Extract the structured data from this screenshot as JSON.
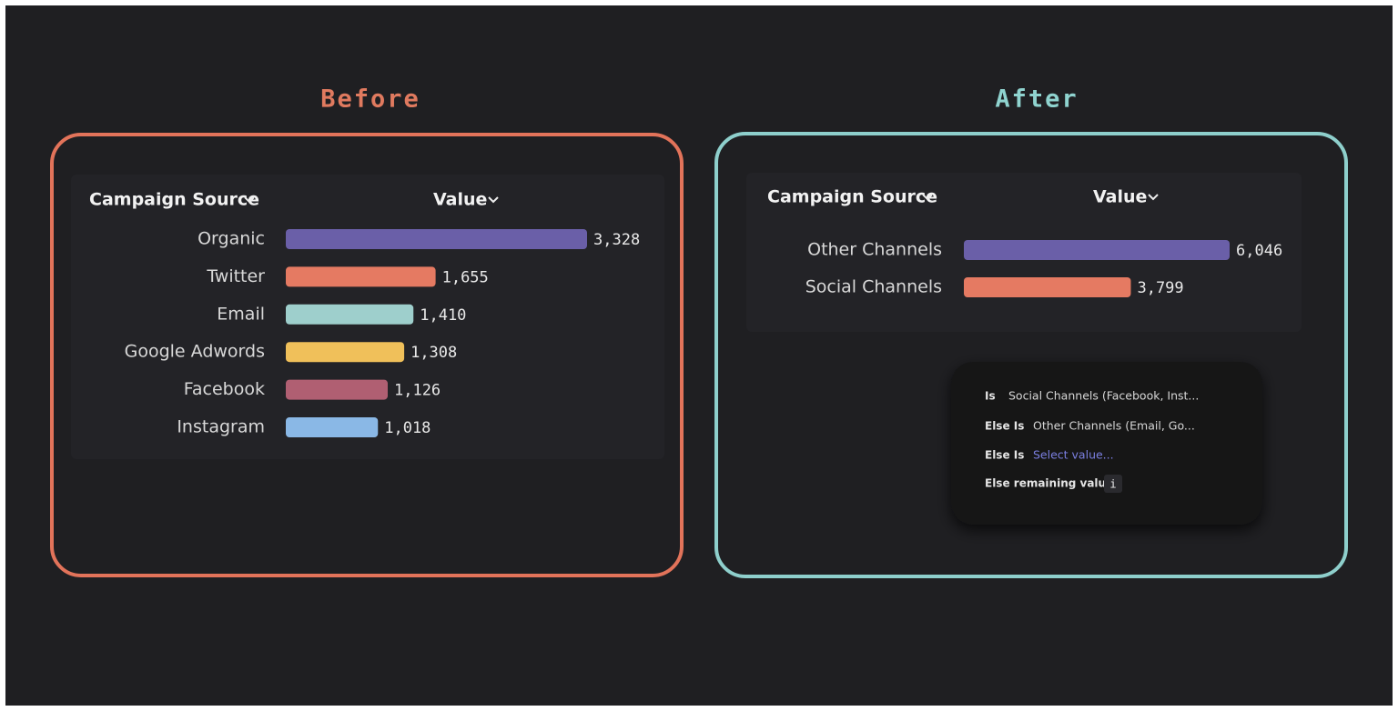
{
  "panels": [
    {
      "title": "Before"
    },
    {
      "title": "After"
    }
  ],
  "chart_data": [
    {
      "type": "bar",
      "category_header": "Campaign Source",
      "value_header": "Value",
      "categories": [
        "Organic",
        "Twitter",
        "Email",
        "Google Adwords",
        "Facebook",
        "Instagram"
      ],
      "values": [
        3328,
        1655,
        1410,
        1308,
        1126,
        1018
      ],
      "value_labels": [
        "3,328",
        "1,655",
        "1,410",
        "1,308",
        "1,126",
        "1,018"
      ],
      "colors": [
        "#6a5fa8",
        "#e57a62",
        "#9ecfcc",
        "#f0c05a",
        "#b05f72",
        "#8ab8e6"
      ]
    },
    {
      "type": "bar",
      "category_header": "Campaign Source",
      "value_header": "Value",
      "categories": [
        "Other Channels",
        "Social Channels"
      ],
      "values": [
        6046,
        3799
      ],
      "value_labels": [
        "6,046",
        "3,799"
      ],
      "colors": [
        "#6a5fa8",
        "#e57a62"
      ]
    }
  ],
  "menu": {
    "rows": [
      {
        "label": "Is",
        "value": "Social Channels (Facebook, Inst..."
      },
      {
        "label": "Else Is",
        "value": "Other Channels (Email, Go..."
      },
      {
        "label": "Else Is",
        "value": "Select value..."
      }
    ],
    "remaining": "Else remaining values",
    "info": "i"
  }
}
